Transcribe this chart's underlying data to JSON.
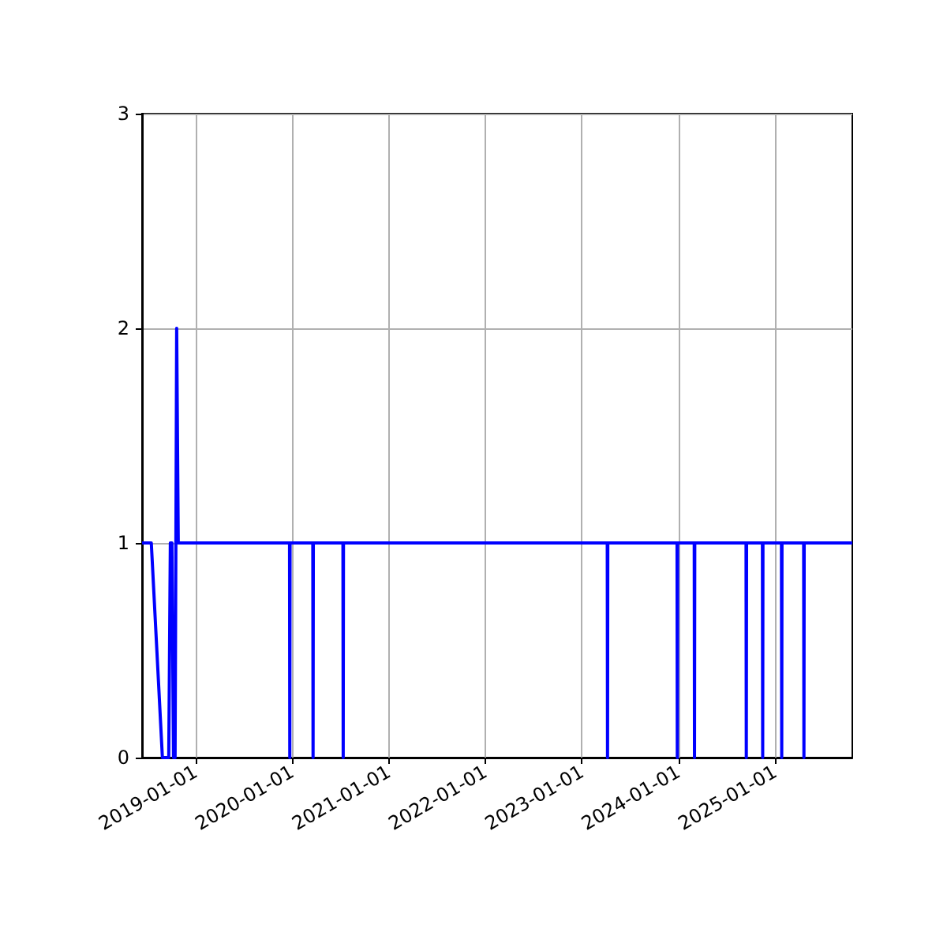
{
  "chart_data": {
    "type": "line",
    "x": [
      "2018-06-12",
      "2018-07-17",
      "2018-08-28",
      "2018-09-21",
      "2018-09-27",
      "2018-10-03",
      "2018-10-09",
      "2018-10-15",
      "2018-10-21",
      "2018-10-27",
      "2019-12-22",
      "2019-12-23",
      "2019-12-24",
      "2020-03-19",
      "2020-03-20",
      "2020-03-21",
      "2020-07-11",
      "2020-07-12",
      "2020-07-13",
      "2023-04-07",
      "2023-04-08",
      "2023-04-09",
      "2023-12-27",
      "2023-12-28",
      "2023-12-29",
      "2024-03-01",
      "2024-03-02",
      "2024-03-03",
      "2024-09-13",
      "2024-09-14",
      "2024-09-15",
      "2024-11-14",
      "2024-11-15",
      "2024-11-16",
      "2025-01-25",
      "2025-01-26",
      "2025-01-27",
      "2025-04-19",
      "2025-04-20",
      "2025-04-21",
      "2025-10-20"
    ],
    "series": [
      {
        "color": "#0000ff",
        "values": [
          1,
          1,
          0,
          0,
          1,
          1,
          0,
          0,
          2,
          1,
          1,
          0,
          1,
          1,
          0,
          1,
          1,
          0,
          1,
          1,
          0,
          1,
          1,
          0,
          1,
          1,
          0,
          1,
          1,
          0,
          1,
          1,
          0,
          1,
          1,
          0,
          1,
          1,
          0,
          1,
          1
        ]
      }
    ],
    "xlim": [
      "2018-06-12",
      "2025-10-20"
    ],
    "xticks": [
      "2019-01-01",
      "2020-01-01",
      "2021-01-01",
      "2022-01-01",
      "2023-01-01",
      "2024-01-01",
      "2025-01-01"
    ],
    "ylim": [
      0,
      3
    ],
    "yticks": [
      0,
      1,
      2,
      3
    ],
    "grid": true,
    "marker": "none",
    "line_style": "solid"
  }
}
